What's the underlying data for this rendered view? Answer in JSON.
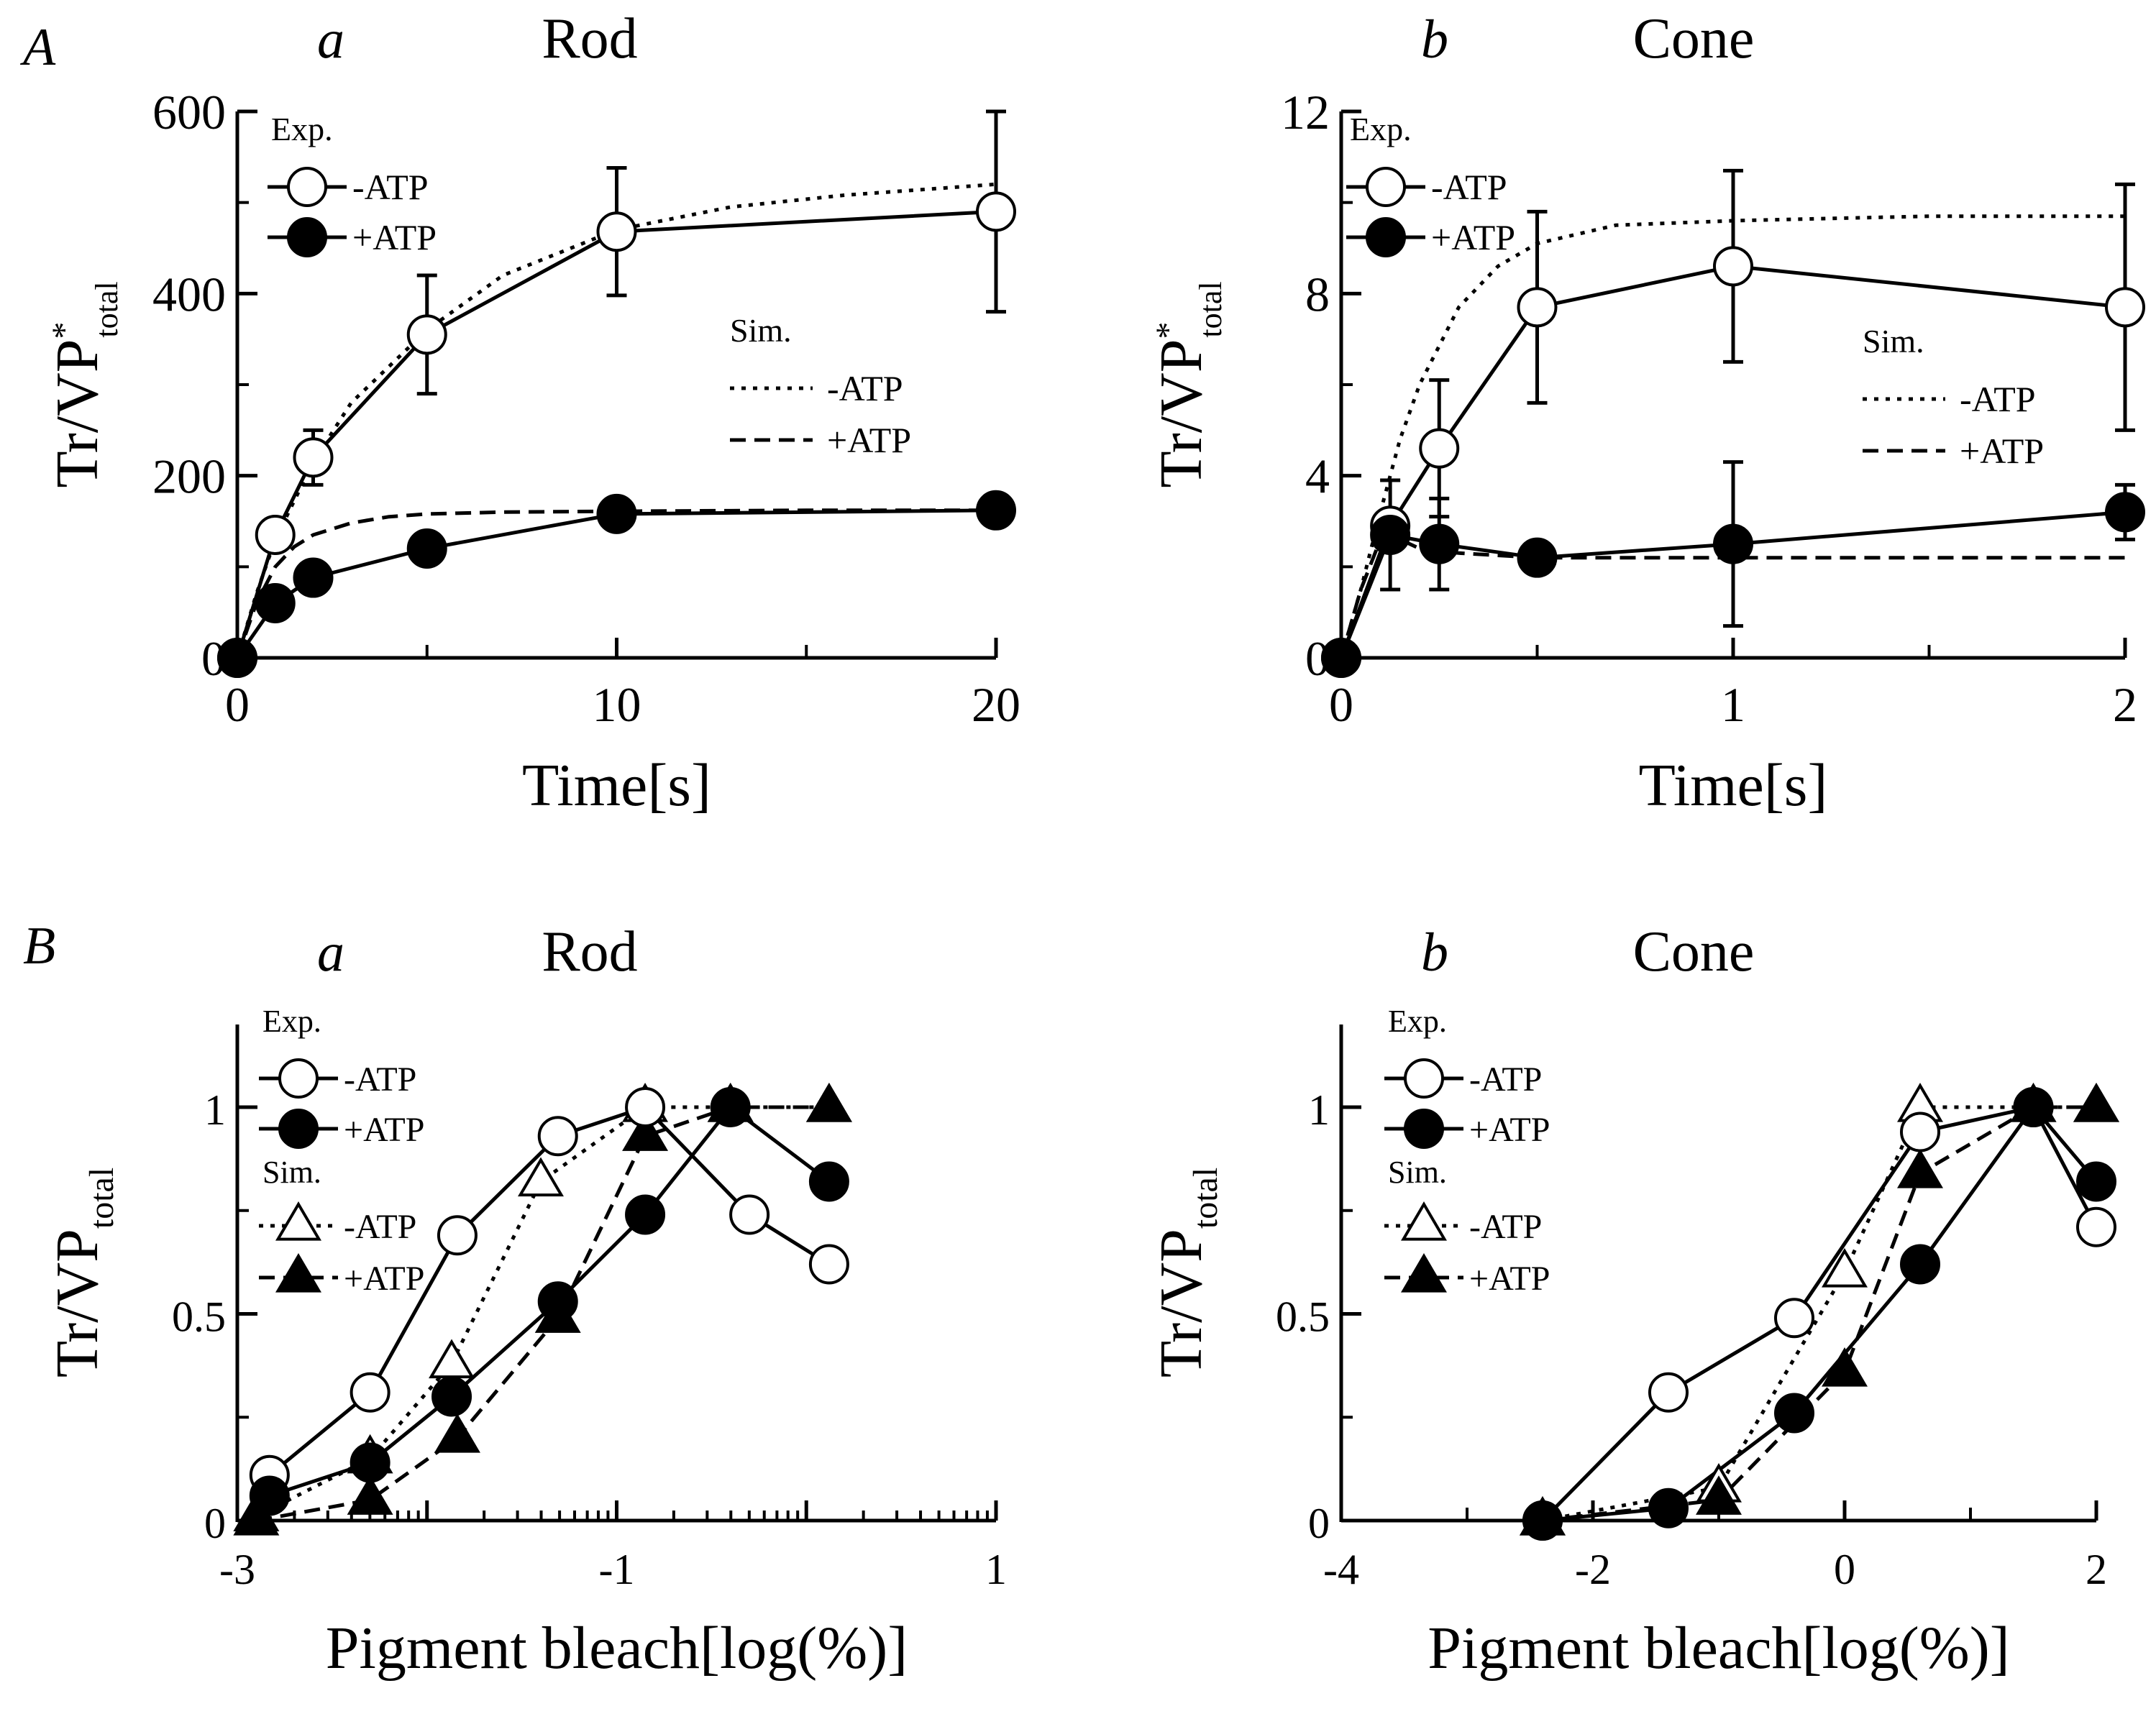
{
  "figure": {
    "panel_labels": {
      "A": "A",
      "B": "B"
    },
    "colors": {
      "ink": "#000000",
      "background": "#ffffff"
    }
  },
  "chart_data": [
    {
      "id": "Aa",
      "type": "line",
      "panel": "A",
      "sublabel": "a",
      "title": "Rod",
      "xlabel": "Time[s]",
      "ylabel_main": "Tr/VP",
      "ylabel_sup": "*",
      "ylabel_sub": "total",
      "xscale": "linear",
      "xlim": [
        0,
        20
      ],
      "ylim": [
        0,
        600
      ],
      "xticks": [
        0,
        10,
        20
      ],
      "yticks": [
        0,
        200,
        400,
        600
      ],
      "legend_exp_title": "Exp.",
      "legend_sim_title": "Sim.",
      "series": [
        {
          "name": "-ATP",
          "group": "Exp.",
          "marker": "open-circle",
          "line": "solid",
          "x": [
            0,
            1,
            2,
            5,
            10,
            20
          ],
          "y": [
            0,
            135,
            220,
            355,
            468,
            490
          ],
          "err": [
            0,
            0,
            30,
            65,
            70,
            110
          ]
        },
        {
          "name": "+ATP",
          "group": "Exp.",
          "marker": "filled-circle",
          "line": "solid",
          "x": [
            0,
            1,
            2,
            5,
            10,
            20
          ],
          "y": [
            0,
            60,
            88,
            120,
            158,
            162
          ],
          "err": [
            0,
            0,
            0,
            0,
            0,
            0
          ]
        },
        {
          "name": "-ATP",
          "group": "Sim.",
          "marker": "none",
          "line": "dotted",
          "x": [
            0,
            0.5,
            1,
            2,
            3,
            5,
            7,
            10,
            13,
            16,
            20
          ],
          "y": [
            0,
            70,
            130,
            215,
            280,
            360,
            420,
            470,
            495,
            508,
            520
          ]
        },
        {
          "name": "+ATP",
          "group": "Sim.",
          "marker": "none",
          "line": "dashed",
          "x": [
            0,
            0.5,
            1,
            1.5,
            2,
            3,
            4,
            5,
            7,
            10,
            15,
            20
          ],
          "y": [
            0,
            60,
            100,
            122,
            135,
            148,
            155,
            158,
            160,
            161,
            162,
            162
          ]
        }
      ]
    },
    {
      "id": "Ab",
      "type": "line",
      "panel": "A",
      "sublabel": "b",
      "title": "Cone",
      "xlabel": "Time[s]",
      "ylabel_main": "Tr/VP",
      "ylabel_sup": "*",
      "ylabel_sub": "total",
      "xscale": "linear",
      "xlim": [
        0,
        2
      ],
      "ylim": [
        0,
        12
      ],
      "xticks": [
        0,
        1,
        2
      ],
      "yticks": [
        0,
        4,
        8,
        12
      ],
      "legend_exp_title": "Exp.",
      "legend_sim_title": "Sim.",
      "series": [
        {
          "name": "-ATP",
          "group": "Exp.",
          "marker": "open-circle",
          "line": "solid",
          "x": [
            0,
            0.125,
            0.25,
            0.5,
            1,
            2
          ],
          "y": [
            0,
            2.9,
            4.6,
            7.7,
            8.6,
            7.7
          ],
          "err": [
            0,
            0,
            1.5,
            2.1,
            2.1,
            2.7
          ]
        },
        {
          "name": "+ATP",
          "group": "Exp.",
          "marker": "filled-circle",
          "line": "solid",
          "x": [
            0,
            0.125,
            0.25,
            0.5,
            1,
            2
          ],
          "y": [
            0,
            2.7,
            2.5,
            2.2,
            2.5,
            3.2
          ],
          "err": [
            0,
            1.2,
            1.0,
            0,
            1.8,
            0.6
          ]
        },
        {
          "name": "-ATP",
          "group": "Sim.",
          "marker": "none",
          "line": "dotted",
          "x": [
            0,
            0.05,
            0.1,
            0.15,
            0.2,
            0.3,
            0.4,
            0.5,
            0.7,
            1.0,
            1.5,
            2.0
          ],
          "y": [
            0,
            1.5,
            3.2,
            4.8,
            6.0,
            7.7,
            8.6,
            9.1,
            9.5,
            9.6,
            9.7,
            9.7
          ]
        },
        {
          "name": "+ATP",
          "group": "Sim.",
          "marker": "none",
          "line": "dashed",
          "x": [
            0,
            0.05,
            0.1,
            0.15,
            0.2,
            0.3,
            0.5,
            1.0,
            2.0
          ],
          "y": [
            0,
            1.5,
            2.6,
            2.6,
            2.4,
            2.3,
            2.2,
            2.2,
            2.2
          ]
        }
      ]
    },
    {
      "id": "Ba",
      "type": "line",
      "panel": "B",
      "sublabel": "a",
      "title": "Rod",
      "xlabel": "Pigment bleach[log(%)]",
      "ylabel_main": "Tr/VP",
      "ylabel_sup": "",
      "ylabel_sub": "total",
      "xscale": "log-decades",
      "xlim": [
        -3,
        1
      ],
      "ylim": [
        0,
        1.2
      ],
      "xticks": [
        -3,
        -1,
        1
      ],
      "yticks": [
        0,
        0.5,
        1
      ],
      "legend_exp_title": "Exp.",
      "legend_sim_title": "Sim.",
      "series": [
        {
          "name": "-ATP",
          "group": "Exp.",
          "marker": "open-circle",
          "line": "solid",
          "x": [
            -2.83,
            -2.3,
            -1.84,
            -1.31,
            -0.85,
            -0.3,
            0.12
          ],
          "y": [
            0.11,
            0.31,
            0.69,
            0.93,
            1.0,
            0.74,
            0.62
          ]
        },
        {
          "name": "+ATP",
          "group": "Exp.",
          "marker": "filled-circle",
          "line": "solid",
          "x": [
            -2.83,
            -2.3,
            -1.87,
            -1.31,
            -0.85,
            -0.4,
            0.12
          ],
          "y": [
            0.06,
            0.14,
            0.3,
            0.53,
            0.74,
            1.0,
            0.82
          ]
        },
        {
          "name": "-ATP",
          "group": "Sim.",
          "marker": "open-triangle",
          "line": "dotted",
          "x": [
            -2.9,
            -2.3,
            -1.87,
            -1.4,
            -0.85,
            -0.4,
            0.12
          ],
          "y": [
            0.01,
            0.15,
            0.38,
            0.82,
            1.0,
            1.0,
            1.0
          ]
        },
        {
          "name": "+ATP",
          "group": "Sim.",
          "marker": "filled-triangle",
          "line": "dashed",
          "x": [
            -2.9,
            -2.3,
            -1.84,
            -1.31,
            -0.85,
            -0.4,
            0.12
          ],
          "y": [
            0.0,
            0.05,
            0.2,
            0.49,
            0.93,
            1.0,
            1.0
          ]
        }
      ]
    },
    {
      "id": "Bb",
      "type": "line",
      "panel": "B",
      "sublabel": "b",
      "title": "Cone",
      "xlabel": "Pigment bleach[log(%)]",
      "ylabel_main": "Tr/VP",
      "ylabel_sup": "",
      "ylabel_sub": "total",
      "xscale": "linear",
      "xlim": [
        -4,
        2
      ],
      "ylim": [
        0,
        1.2
      ],
      "xticks": [
        -4,
        -2,
        0,
        2
      ],
      "yticks": [
        0,
        0.5,
        1
      ],
      "legend_exp_title": "Exp.",
      "legend_sim_title": "Sim.",
      "series": [
        {
          "name": "-ATP",
          "group": "Exp.",
          "marker": "open-circle",
          "line": "solid",
          "x": [
            -2.4,
            -1.4,
            -0.4,
            0.6,
            1.5,
            2.0
          ],
          "y": [
            0.0,
            0.31,
            0.49,
            0.94,
            1.0,
            0.71
          ]
        },
        {
          "name": "+ATP",
          "group": "Exp.",
          "marker": "filled-circle",
          "line": "solid",
          "x": [
            -2.4,
            -1.4,
            -0.4,
            0.6,
            1.5,
            2.0
          ],
          "y": [
            0.0,
            0.03,
            0.26,
            0.62,
            1.0,
            0.82
          ]
        },
        {
          "name": "-ATP",
          "group": "Sim.",
          "marker": "open-triangle",
          "line": "dotted",
          "x": [
            -2.4,
            -1.0,
            0.0,
            0.6,
            1.5,
            2.0
          ],
          "y": [
            0.0,
            0.08,
            0.6,
            1.0,
            1.0,
            1.0
          ]
        },
        {
          "name": "+ATP",
          "group": "Sim.",
          "marker": "filled-triangle",
          "line": "dashed",
          "x": [
            -2.4,
            -1.0,
            0.0,
            0.6,
            1.5,
            2.0
          ],
          "y": [
            0.0,
            0.05,
            0.36,
            0.84,
            1.0,
            1.0
          ]
        }
      ]
    }
  ]
}
